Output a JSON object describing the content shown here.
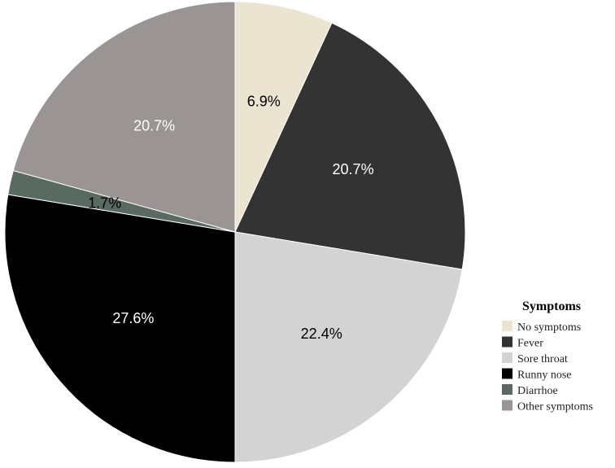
{
  "chart_data": {
    "type": "pie",
    "legend_title": "Symptoms",
    "legend_position": "bottom-right",
    "start_angle_deg": 0,
    "direction": "clockwise",
    "slices": [
      {
        "label": "No symptoms",
        "value": 6.9,
        "value_label": "6.9%",
        "color": "#ebe4d0",
        "label_color": "#000000"
      },
      {
        "label": "Fever",
        "value": 20.7,
        "value_label": "20.7%",
        "color": "#333333",
        "label_color": "#ffffff"
      },
      {
        "label": "Sore throat",
        "value": 22.4,
        "value_label": "22.4%",
        "color": "#d3d3d3",
        "label_color": "#000000"
      },
      {
        "label": "Runny nose",
        "value": 27.6,
        "value_label": "27.6%",
        "color": "#000000",
        "label_color": "#ffffff"
      },
      {
        "label": "Diarrhoe",
        "value": 1.7,
        "value_label": "1.7%",
        "color": "#596a62",
        "label_color": "#000000"
      },
      {
        "label": "Other symptoms",
        "value": 20.7,
        "value_label": "20.7%",
        "color": "#9a9494",
        "label_color": "#ffffff"
      }
    ]
  }
}
